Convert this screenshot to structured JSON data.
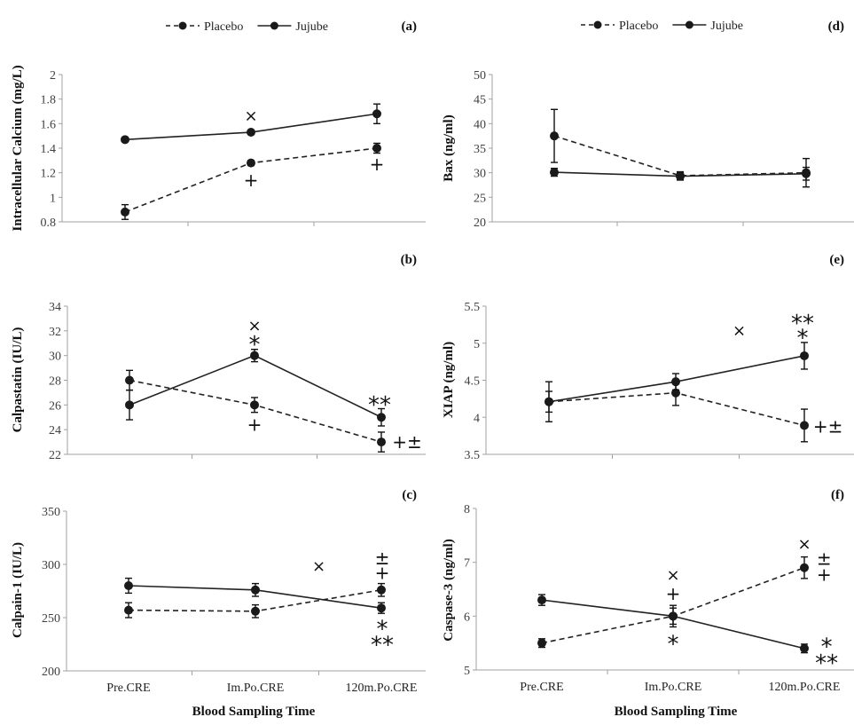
{
  "legend": {
    "placement": "top",
    "entries": [
      {
        "name": "Placebo",
        "style": "dashed"
      },
      {
        "name": "Jujube",
        "style": "solid"
      }
    ]
  },
  "xlabel": "Blood Sampling Time",
  "categories": [
    "Pre.CRE",
    "Im.Po.CRE",
    "120m.Po.CRE"
  ],
  "chart_data": [
    {
      "id": "a",
      "panel_label": "(a)",
      "type": "line",
      "ylabel": "Intracellular Calcium (mg/L)",
      "ylim": [
        0.8,
        2
      ],
      "yticks": [
        "0.8",
        "1",
        "1.2",
        "1.4",
        "1.6",
        "1.8",
        "2"
      ],
      "ytick_values": [
        0.8,
        1,
        1.2,
        1.4,
        1.6,
        1.8,
        2
      ],
      "show_xticklabels": false,
      "series": [
        {
          "name": "Placebo",
          "values": [
            0.88,
            1.28,
            1.4
          ],
          "errors": [
            0.06,
            0.02,
            0.04
          ]
        },
        {
          "name": "Jujube",
          "values": [
            1.47,
            1.53,
            1.68
          ],
          "errors": [
            0.01,
            0.01,
            0.08
          ]
        }
      ],
      "annotations": [
        {
          "cat": 1,
          "y": 1.67,
          "text": "×"
        },
        {
          "cat": 1,
          "y": 1.14,
          "text": "+"
        },
        {
          "cat": 2,
          "y": 1.27,
          "text": "+"
        }
      ]
    },
    {
      "id": "b",
      "panel_label": "(b)",
      "type": "line",
      "ylabel": "Calpastatin (IU/L)",
      "ylim": [
        22,
        34
      ],
      "yticks": [
        "22",
        "24",
        "26",
        "28",
        "30",
        "32",
        "34"
      ],
      "ytick_values": [
        22,
        24,
        26,
        28,
        30,
        32,
        34
      ],
      "show_xticklabels": false,
      "series": [
        {
          "name": "Placebo",
          "values": [
            28,
            26,
            23
          ],
          "errors": [
            0.8,
            0.6,
            0.8
          ]
        },
        {
          "name": "Jujube",
          "values": [
            26,
            30,
            25
          ],
          "errors": [
            1.2,
            0.5,
            0.7
          ]
        }
      ],
      "annotations": [
        {
          "cat": 1,
          "y": 32.5,
          "text": "×"
        },
        {
          "cat": 1,
          "y": 31.2,
          "text": "*"
        },
        {
          "cat": 1,
          "y": 24.4,
          "text": "+"
        },
        {
          "cat": 2,
          "y": 26.3,
          "text": "**"
        },
        {
          "cat": 2.22,
          "y": 23,
          "text": "+±"
        }
      ]
    },
    {
      "id": "c",
      "panel_label": "(c)",
      "type": "line",
      "ylabel": "Calpain-1 (IU/L)",
      "ylim": [
        200,
        350
      ],
      "yticks": [
        "200",
        "250",
        "300",
        "350"
      ],
      "ytick_values": [
        200,
        250,
        300,
        350
      ],
      "show_xticklabels": true,
      "series": [
        {
          "name": "Placebo",
          "values": [
            257,
            256,
            276
          ],
          "errors": [
            7,
            6,
            6
          ]
        },
        {
          "name": "Jujube",
          "values": [
            280,
            276,
            259
          ],
          "errors": [
            7,
            6,
            5
          ]
        }
      ],
      "annotations": [
        {
          "cat": 1.5,
          "y": 299,
          "text": "×"
        },
        {
          "cat": 2,
          "y": 306,
          "text": "±"
        },
        {
          "cat": 2,
          "y": 292,
          "text": "+"
        },
        {
          "cat": 2,
          "y": 243,
          "text": "*"
        },
        {
          "cat": 2,
          "y": 228,
          "text": "**"
        }
      ]
    },
    {
      "id": "d",
      "panel_label": "(d)",
      "type": "line",
      "ylabel": "Bax (ng/ml)",
      "ylim": [
        20,
        50
      ],
      "yticks": [
        "20",
        "25",
        "30",
        "35",
        "40",
        "45",
        "50"
      ],
      "ytick_values": [
        20,
        25,
        30,
        35,
        40,
        45,
        50
      ],
      "show_xticklabels": false,
      "series": [
        {
          "name": "Placebo",
          "values": [
            37.5,
            29.4,
            30.0
          ],
          "errors": [
            5.4,
            0.8,
            2.9
          ]
        },
        {
          "name": "Jujube",
          "values": [
            30.1,
            29.3,
            29.8
          ],
          "errors": [
            0.8,
            0.8,
            1.3
          ]
        }
      ],
      "annotations": []
    },
    {
      "id": "e",
      "panel_label": "(e)",
      "type": "line",
      "ylabel": "XIAP (ng/ml)",
      "ylim": [
        3.5,
        5.5
      ],
      "yticks": [
        "3.5",
        "4",
        "4.5",
        "5",
        "5.5"
      ],
      "ytick_values": [
        3.5,
        4,
        4.5,
        5,
        5.5
      ],
      "show_xticklabels": false,
      "series": [
        {
          "name": "Placebo",
          "values": [
            4.21,
            4.33,
            3.89
          ],
          "errors": [
            0.14,
            0.17,
            0.22
          ]
        },
        {
          "name": "Jujube",
          "values": [
            4.21,
            4.48,
            4.83
          ],
          "errors": [
            0.27,
            0.11,
            0.18
          ]
        }
      ],
      "annotations": [
        {
          "cat": 1.5,
          "y": 5.18,
          "text": "×"
        },
        {
          "cat": 2,
          "y": 5.32,
          "text": "**"
        },
        {
          "cat": 2,
          "y": 5.12,
          "text": "*"
        },
        {
          "cat": 2.2,
          "y": 3.88,
          "text": "+±"
        }
      ]
    },
    {
      "id": "f",
      "panel_label": "(f)",
      "type": "line",
      "ylabel": "Caspase-3 (ng/ml)",
      "ylim": [
        5,
        8
      ],
      "yticks": [
        "5",
        "6",
        "7",
        "8"
      ],
      "ytick_values": [
        5,
        6,
        7,
        8
      ],
      "show_xticklabels": true,
      "series": [
        {
          "name": "Placebo",
          "values": [
            5.5,
            6.0,
            6.9
          ],
          "errors": [
            0.08,
            0.2,
            0.2
          ]
        },
        {
          "name": "Jujube",
          "values": [
            6.3,
            6.0,
            5.4
          ],
          "errors": [
            0.1,
            0.15,
            0.08
          ]
        }
      ],
      "annotations": [
        {
          "cat": 1,
          "y": 6.78,
          "text": "×"
        },
        {
          "cat": 1,
          "y": 6.42,
          "text": "+"
        },
        {
          "cat": 1,
          "y": 5.55,
          "text": "*"
        },
        {
          "cat": 2,
          "y": 7.36,
          "text": "×"
        },
        {
          "cat": 2.15,
          "y": 7.07,
          "text": "±"
        },
        {
          "cat": 2.15,
          "y": 6.77,
          "text": "+"
        },
        {
          "cat": 2.17,
          "y": 5.5,
          "text": "*"
        },
        {
          "cat": 2.17,
          "y": 5.2,
          "text": "**"
        }
      ]
    }
  ]
}
